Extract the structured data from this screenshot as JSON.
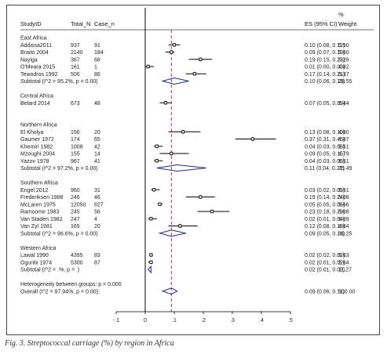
{
  "headers": {
    "study": "StudyID",
    "total": "Total_N",
    "cases": "Case_n",
    "es": "ES (95% CI)",
    "weight_pct": "%",
    "weight": "Weight"
  },
  "caption": "Fig. 3. Streptococcal carriage (%) by region in Africa",
  "chart_data": {
    "type": "forest",
    "xlim": [
      -0.1,
      0.5
    ],
    "x_ticks": [
      "-.1",
      "0",
      ".1",
      ".2",
      ".3",
      ".4",
      ".5"
    ],
    "x_tick_values": [
      -0.1,
      0,
      0.1,
      0.2,
      0.3,
      0.4,
      0.5
    ],
    "reference_line": 0.09,
    "zero_line": 0,
    "rows": [
      {
        "kind": "group",
        "label": "East Africa"
      },
      {
        "kind": "study",
        "label": "Addissa2011",
        "total": "937",
        "cases": "91",
        "es": 0.1,
        "lo": 0.08,
        "hi": 0.12,
        "ci_text": "0.10 (0.08, 0.12)",
        "weight": "5.50"
      },
      {
        "kind": "study",
        "label": "Braito 2004",
        "total": "2140",
        "cases": "184",
        "es": 0.09,
        "lo": 0.07,
        "hi": 0.1,
        "ci_text": "0.09 (0.07, 0.10)",
        "weight": "5.60"
      },
      {
        "kind": "study",
        "label": "Nayiga",
        "total": "367",
        "cases": "68",
        "es": 0.19,
        "lo": 0.15,
        "hi": 0.23,
        "ci_text": "0.19 (0.15, 0.23)",
        "weight": "5.26"
      },
      {
        "kind": "study",
        "label": "O'Meara 2015",
        "total": "161",
        "cases": "1",
        "es": 0.01,
        "lo": 0.0,
        "hi": 0.03,
        "ci_text": "0.01 (0.00, 0.03)",
        "weight": "4.82"
      },
      {
        "kind": "study",
        "label": "Tewodros 1992",
        "total": "506",
        "cases": "86",
        "es": 0.17,
        "lo": 0.14,
        "hi": 0.21,
        "ci_text": "0.17 (0.14, 0.21)",
        "weight": "5.37"
      },
      {
        "kind": "subtotal",
        "label": "Subtotal  (I^2 = 95.2%, p = 0.00)",
        "es": 0.1,
        "lo": 0.06,
        "hi": 0.15,
        "ci_text": "0.10 (0.06, 0.15)",
        "weight": "26.55"
      },
      {
        "kind": "blank"
      },
      {
        "kind": "group",
        "label": "Central Africa"
      },
      {
        "kind": "study",
        "label": "Belard 2014",
        "total": "673",
        "cases": "48",
        "es": 0.07,
        "lo": 0.05,
        "hi": 0.09,
        "ci_text": "0.07 (0.05, 0.09)",
        "weight": "5.44"
      },
      {
        "kind": "blank"
      },
      {
        "kind": "blank"
      },
      {
        "kind": "group",
        "label": "Northern Africa"
      },
      {
        "kind": "study",
        "label": "El Kholya",
        "total": "156",
        "cases": "20",
        "es": 0.13,
        "lo": 0.08,
        "hi": 0.19,
        "ci_text": "0.13 (0.08, 0.19)",
        "weight": "4.80"
      },
      {
        "kind": "study",
        "label": "Gaumer 1972",
        "total": "174",
        "cases": "65",
        "es": 0.37,
        "lo": 0.31,
        "hi": 0.45,
        "ci_text": "0.37 (0.31, 0.45)",
        "weight": "4.87"
      },
      {
        "kind": "study",
        "label": "Khemiri 1982",
        "total": "1008",
        "cases": "42",
        "es": 0.04,
        "lo": 0.03,
        "hi": 0.06,
        "ci_text": "0.04 (0.03, 0.06)",
        "weight": "5.51"
      },
      {
        "kind": "study",
        "label": "Mzoughi 2004",
        "total": "155",
        "cases": "14",
        "es": 0.09,
        "lo": 0.05,
        "hi": 0.15,
        "ci_text": "0.09 (0.05, 0.15)",
        "weight": "4.79"
      },
      {
        "kind": "study",
        "label": "Yazov 1978",
        "total": "967",
        "cases": "41",
        "es": 0.04,
        "lo": 0.03,
        "hi": 0.06,
        "ci_text": "0.04 (0.03, 0.06)",
        "weight": "5.51"
      },
      {
        "kind": "subtotal",
        "label": "Subtotal  (I^2 = 97.2%, p = 0.00)",
        "es": 0.11,
        "lo": 0.04,
        "hi": 0.21,
        "ci_text": "0.11 (0.04, 0.21)",
        "weight": "25.49"
      },
      {
        "kind": "blank"
      },
      {
        "kind": "group",
        "label": "Southern Africa"
      },
      {
        "kind": "study",
        "label": "Engel 2012",
        "total": "960",
        "cases": "31",
        "es": 0.03,
        "lo": 0.02,
        "hi": 0.05,
        "ci_text": "0.03 (0.02, 0.05)",
        "weight": "5.51"
      },
      {
        "kind": "study",
        "label": "Frederiksen 1988",
        "total": "246",
        "cases": "46",
        "es": 0.19,
        "lo": 0.14,
        "hi": 0.24,
        "ci_text": "0.19 (0.14, 0.24)",
        "weight": "5.08"
      },
      {
        "kind": "study",
        "label": "McLaren 1975",
        "total": "12050",
        "cases": "627",
        "es": 0.05,
        "lo": 0.05,
        "hi": 0.06,
        "ci_text": "0.05 (0.05, 0.06)",
        "weight": "5.66"
      },
      {
        "kind": "study",
        "label": "Ramsome 1983",
        "total": "245",
        "cases": "56",
        "es": 0.23,
        "lo": 0.18,
        "hi": 0.29,
        "ci_text": "0.23 (0.18, 0.29)",
        "weight": "5.08"
      },
      {
        "kind": "study",
        "label": "Van Staden 1982",
        "total": "247",
        "cases": "4",
        "es": 0.02,
        "lo": 0.01,
        "hi": 0.04,
        "ci_text": "0.02 (0.01, 0.04)",
        "weight": "5.09"
      },
      {
        "kind": "study",
        "label": "Van Zyl 1981",
        "total": "165",
        "cases": "20",
        "es": 0.12,
        "lo": 0.08,
        "hi": 0.18,
        "ci_text": "0.12 (0.08, 0.18)",
        "weight": "4.84"
      },
      {
        "kind": "subtotal",
        "label": "Subtotal  (I^2 = 96.6%, p = 0.00)",
        "es": 0.09,
        "lo": 0.05,
        "hi": 0.14,
        "ci_text": "0.09 (0.05, 0.14)",
        "weight": "31.25"
      },
      {
        "kind": "blank"
      },
      {
        "kind": "group",
        "label": "Western Africa"
      },
      {
        "kind": "study",
        "label": "Lawal 1990",
        "total": "4395",
        "cases": "83",
        "es": 0.02,
        "lo": 0.02,
        "hi": 0.02,
        "ci_text": "0.02 (0.02, 0.02)",
        "weight": "5.63"
      },
      {
        "kind": "study",
        "label": "Ogunbi 1974",
        "total": "5300",
        "cases": "87",
        "es": 0.02,
        "lo": 0.01,
        "hi": 0.02,
        "ci_text": "0.02 (0.01, 0.02)",
        "weight": "5.64"
      },
      {
        "kind": "subtotal",
        "label": "Subtotal  (I^2 = .%, p = .)",
        "es": 0.02,
        "lo": 0.01,
        "hi": 0.02,
        "ci_text": "0.02 (0.01, 0.02)",
        "weight": "11.27"
      },
      {
        "kind": "blank"
      },
      {
        "kind": "note",
        "label": "Heterogeneity between groups: p = 0.000"
      },
      {
        "kind": "overall",
        "label": "Overall  (I^2 = 97.94%, p = 0.00);",
        "es": 0.09,
        "lo": 0.06,
        "hi": 0.11,
        "ci_text": "0.09 (0.06, 0.11)",
        "weight": "100.00"
      }
    ]
  }
}
